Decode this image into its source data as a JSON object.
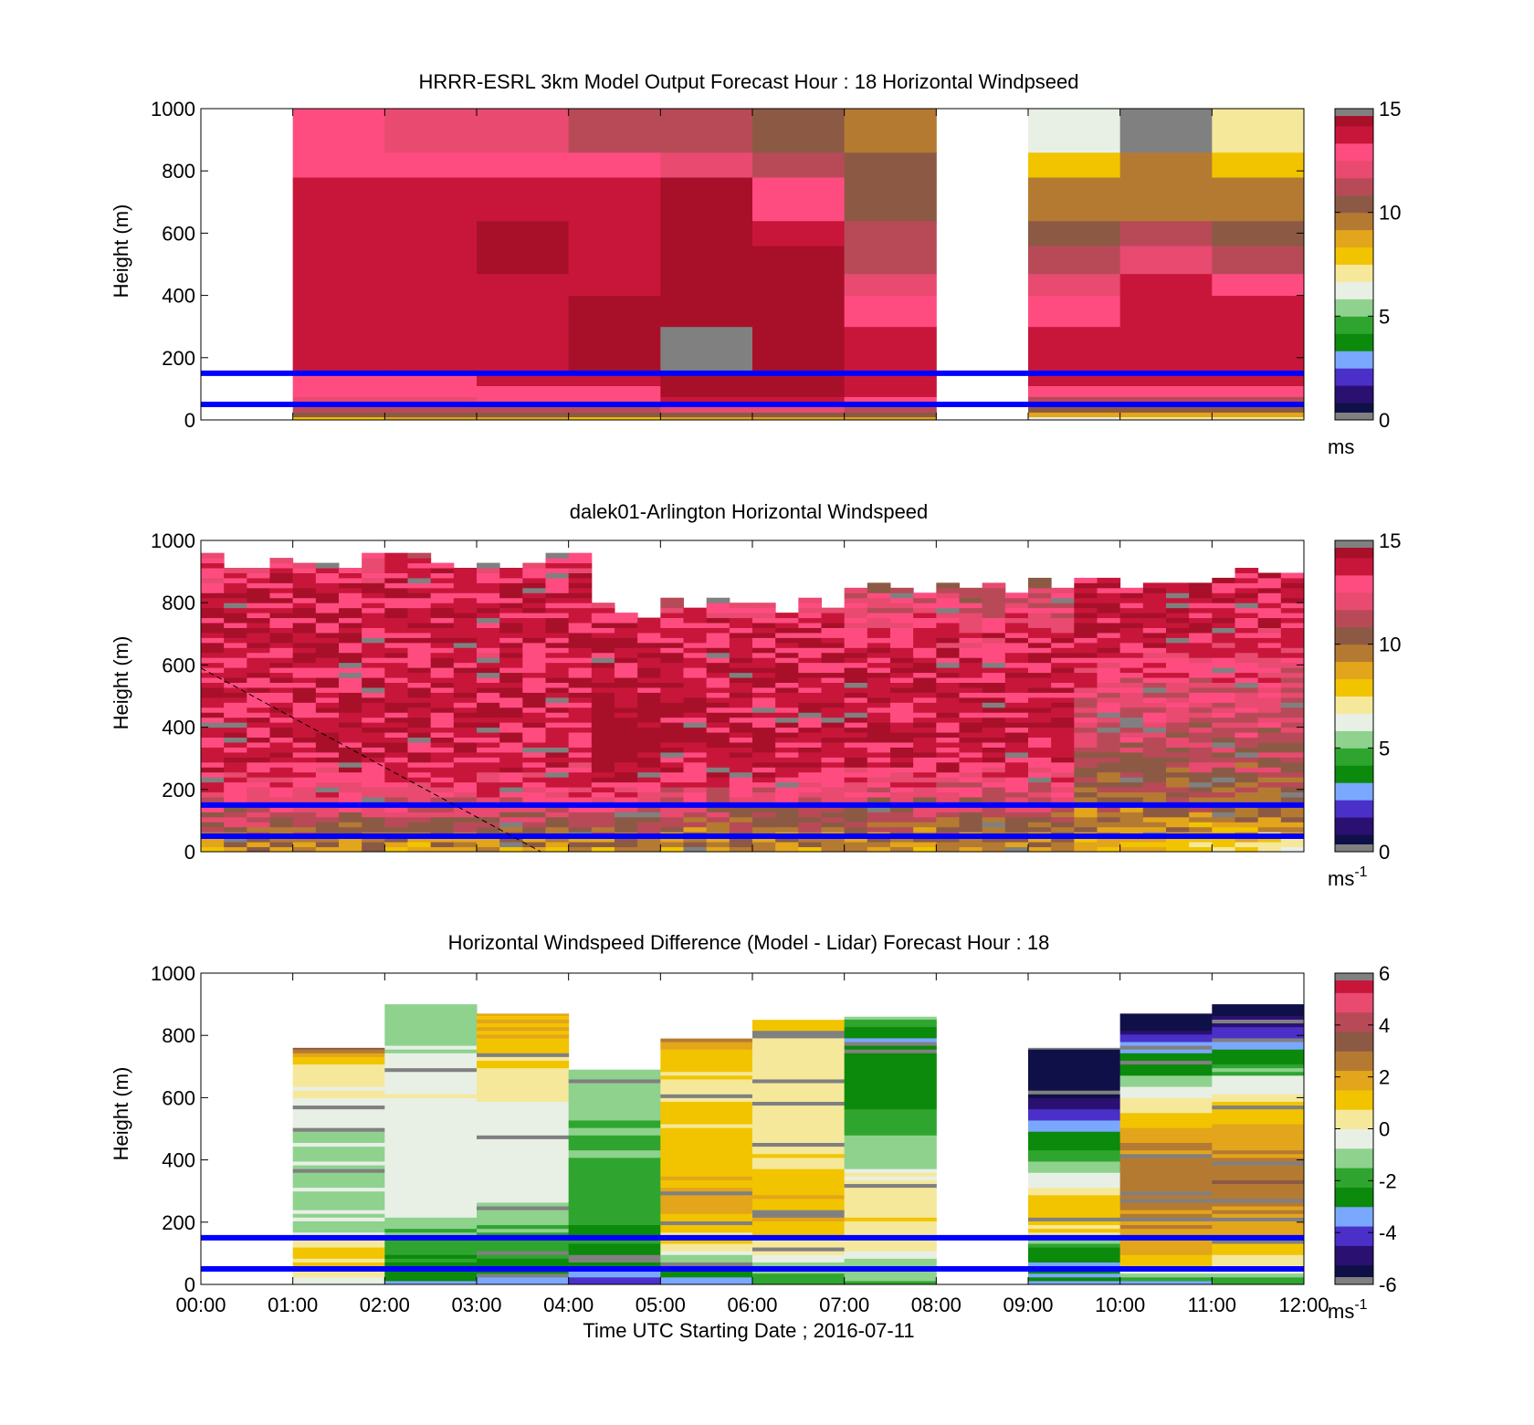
{
  "colors": {
    "speed_scale": [
      "#101048",
      "#2a1070",
      "#4a30c8",
      "#7aa8ff",
      "#0b8a0b",
      "#2fa52f",
      "#8ed28e",
      "#e8f0e6",
      "#f5e89a",
      "#f2c400",
      "#e3a51b",
      "#b57a32",
      "#8c5a44",
      "#b84a58",
      "#e84a70",
      "#ff4c80",
      "#c8163a",
      "#a8102a"
    ],
    "diff_scale": [
      "#101048",
      "#2a1070",
      "#4a30c8",
      "#7aa8ff",
      "#0b8a0b",
      "#2fa52f",
      "#8ed28e",
      "#e8f0e6",
      "#f5e89a",
      "#f2c400",
      "#e3a51b",
      "#b57a32",
      "#8c5a44",
      "#b84a58",
      "#e84a70",
      "#c8163a"
    ],
    "missing": "#808080",
    "reference_lines": "#0000ff"
  },
  "chart_data": [
    {
      "type": "heatmap",
      "title": "HRRR-ESRL 3km Model Output   Forecast Hour : 18 Horizontal Windpseed",
      "ylabel": "Height (m)",
      "xlabel": "",
      "x_tick_labels": [],
      "ylim": [
        0,
        1000
      ],
      "y_ticks": [
        0,
        200,
        400,
        600,
        800,
        1000
      ],
      "xlim_hours": [
        0,
        12
      ],
      "colorbar": {
        "range": [
          0,
          15
        ],
        "ticks": [
          0,
          5,
          10,
          15
        ],
        "unit": "ms",
        "unit_sup": ""
      },
      "reference_lines_m": [
        50,
        150
      ],
      "columns": [
        {
          "hour_start": 0,
          "values": null
        },
        {
          "hour_start": 1,
          "values": [
            8,
            10,
            11,
            12,
            12.5,
            13,
            13.5,
            13.5,
            13.5,
            13.8,
            13.8,
            13.8,
            13.5,
            13.2,
            13.0
          ]
        },
        {
          "hour_start": 2,
          "values": [
            8.5,
            10,
            11,
            12,
            12.5,
            13,
            13.5,
            13.5,
            13.8,
            13.8,
            13.8,
            13.6,
            13.4,
            12.8,
            12.0
          ]
        },
        {
          "hour_start": 3,
          "values": [
            9,
            10,
            11.5,
            12.5,
            13,
            13.8,
            14,
            14,
            14,
            14,
            14.2,
            14.2,
            13.8,
            13.2,
            12.0
          ]
        },
        {
          "hour_start": 4,
          "values": [
            8,
            10,
            11,
            12.5,
            13.2,
            14,
            14.2,
            14.4,
            14.2,
            14,
            14,
            13.8,
            13.5,
            12.5,
            11.0
          ]
        },
        {
          "hour_start": 5,
          "values": [
            9,
            10.5,
            12,
            13.5,
            14.5,
            15,
            null,
            null,
            15,
            15,
            15,
            14.2,
            14.2,
            12.2,
            11.0
          ]
        },
        {
          "hour_start": 6,
          "values": [
            9,
            10.5,
            12,
            13.5,
            14.5,
            15,
            15,
            15,
            15,
            15,
            14.2,
            13.5,
            13.2,
            11.0,
            10.5
          ]
        },
        {
          "hour_start": 7,
          "values": [
            8.5,
            10,
            11,
            12.5,
            13.5,
            13.8,
            13.8,
            13.8,
            13.2,
            12.2,
            11.5,
            11.0,
            10.5,
            10.0,
            9.5
          ]
        },
        {
          "hour_start": 8,
          "values": null
        },
        {
          "hour_start": 9,
          "values": [
            6,
            9,
            10,
            11,
            12.5,
            13.5,
            13.8,
            13.8,
            13.2,
            12.0,
            11.0,
            10.0,
            9.5,
            7.5,
            6.5
          ]
        },
        {
          "hour_start": 10,
          "values": [
            7,
            9,
            10,
            11,
            12.5,
            13.5,
            13.8,
            13.8,
            13.8,
            13.5,
            12.0,
            11.0,
            9.5,
            9.5,
            null
          ]
        },
        {
          "hour_start": 11,
          "values": [
            7,
            9,
            10,
            11,
            12.5,
            13.5,
            13.8,
            13.8,
            13.5,
            13.2,
            11.0,
            10.0,
            9.5,
            8.0,
            7.0
          ]
        }
      ]
    },
    {
      "type": "heatmap",
      "title": "dalek01-Arlington  Horizontal Windspeed",
      "ylabel": "Height (m)",
      "xlabel": "",
      "x_tick_labels": [],
      "ylim": [
        0,
        1000
      ],
      "y_ticks": [
        0,
        200,
        400,
        600,
        800,
        1000
      ],
      "xlim_hours": [
        0,
        12
      ],
      "colorbar": {
        "range": [
          0,
          15
        ],
        "ticks": [
          0,
          5,
          10,
          15
        ],
        "unit": "ms",
        "unit_sup": "-1"
      },
      "reference_lines_m": [
        50,
        150
      ],
      "dashed_line": {
        "from": [
          0,
          590
        ],
        "to": [
          3.7,
          0
        ]
      },
      "profile_bands": [
        {
          "from_hour": 0,
          "to_hour": 4.2,
          "max_height_m": 960,
          "values_bottom_to_top": [
            9,
            11,
            12.5,
            13.5,
            13.8,
            13.8,
            13.8,
            13.5,
            13.8,
            13.8,
            13.5,
            12.5
          ]
        },
        {
          "from_hour": 4.2,
          "to_hour": 5.0,
          "max_height_m": 800,
          "values_bottom_to_top": [
            9,
            11,
            12.5,
            14.5,
            15,
            15,
            14.5,
            14,
            13.8,
            13.5,
            13
          ]
        },
        {
          "from_hour": 5.0,
          "to_hour": 7.0,
          "max_height_m": 820,
          "values_bottom_to_top": [
            9,
            10.5,
            12,
            13.5,
            14,
            14,
            14,
            14,
            13.8,
            13.5,
            11
          ]
        },
        {
          "from_hour": 7.0,
          "to_hour": 9.5,
          "max_height_m": 880,
          "values_bottom_to_top": [
            9,
            10.5,
            12,
            13.5,
            13.8,
            13.8,
            13.8,
            13.8,
            13,
            12,
            11
          ]
        },
        {
          "from_hour": 9.5,
          "to_hour": 11.0,
          "max_height_m": 900,
          "values_bottom_to_top": [
            8,
            9.5,
            10.5,
            11,
            11.5,
            12,
            12.5,
            13.2,
            13.8,
            13.8,
            13.5
          ]
        },
        {
          "from_hour": 11.0,
          "to_hour": 11.95,
          "max_height_m": 920,
          "values_bottom_to_top": [
            7,
            9.5,
            10.5,
            11,
            11.5,
            12,
            12.5,
            13,
            13.5,
            13.8,
            14
          ]
        }
      ]
    },
    {
      "type": "heatmap",
      "title": "Horizontal Windspeed Difference (Model - Lidar) Forecast Hour : 18",
      "ylabel": "Height (m)",
      "xlabel": "Time UTC  Starting Date ; 2016-07-11",
      "x_tick_labels": [
        "00:00",
        "01:00",
        "02:00",
        "03:00",
        "04:00",
        "05:00",
        "06:00",
        "07:00",
        "08:00",
        "09:00",
        "10:00",
        "11:00",
        "12:00"
      ],
      "ylim": [
        0,
        1000
      ],
      "y_ticks": [
        0,
        200,
        400,
        600,
        800,
        1000
      ],
      "xlim_hours": [
        0,
        12
      ],
      "colorbar": {
        "range": [
          -6,
          6
        ],
        "ticks": [
          -6,
          -4,
          -2,
          0,
          2,
          4,
          6
        ],
        "unit": "ms",
        "unit_sup": "-1"
      },
      "reference_lines_m": [
        50,
        150
      ],
      "columns": [
        {
          "hour_start": 0,
          "top_m": 0,
          "values_bottom_to_top": []
        },
        {
          "hour_start": 1,
          "top_m": 760,
          "values_bottom_to_top": [
            -0.5,
            0.5,
            1,
            -1,
            -1,
            -1,
            -1,
            -1,
            -0.8,
            -0.8,
            -0.5,
            0,
            0.2,
            0.5,
            3.5
          ]
        },
        {
          "hour_start": 2,
          "top_m": 900,
          "values_bottom_to_top": [
            -3,
            -2.5,
            -1.8,
            -1.0,
            -0.4,
            -0.3,
            -0.3,
            -0.3,
            -0.3,
            -0.2,
            -0.2,
            -0.5,
            -0.8,
            -1.0,
            -1.2
          ]
        },
        {
          "hour_start": 3,
          "top_m": 870,
          "values_bottom_to_top": [
            -3,
            -2.5,
            -1.8,
            -1.5,
            -0.8,
            -0.4,
            -0.4,
            -0.4,
            -0.3,
            -0.2,
            0.3,
            0.5,
            1.2,
            1.5,
            1.5
          ]
        },
        {
          "hour_start": 4,
          "top_m": 690,
          "values_bottom_to_top": [
            -4,
            -3,
            -2.5,
            -2.3,
            -2.0,
            -1.8,
            -1.8,
            -1.7,
            -1.6,
            -1.5,
            -1.4,
            -1.3,
            -1.2,
            -1.0,
            -1.0
          ]
        },
        {
          "hour_start": 5,
          "top_m": 790,
          "values_bottom_to_top": [
            -3,
            -2,
            0.5,
            1,
            1.5,
            1.5,
            1.3,
            1.2,
            1.0,
            0.8,
            0.7,
            0.6,
            0.8,
            1.0,
            3.0
          ]
        },
        {
          "hour_start": 6,
          "top_m": 850,
          "values_bottom_to_top": [
            -2,
            -1,
            0.5,
            1.5,
            1.5,
            1.2,
            1.0,
            0.8,
            0.6,
            0.3,
            0.2,
            0.1,
            0.3,
            0.5,
            1.5
          ]
        },
        {
          "hour_start": 7,
          "top_m": 860,
          "values_bottom_to_top": [
            -1.5,
            -1,
            0.3,
            0.5,
            0.5,
            0.4,
            -0.5,
            -1.2,
            -1.8,
            -2.2,
            -2.5,
            -2.8,
            -3.0,
            -3.0,
            -1.0
          ]
        },
        {
          "hour_start": 8,
          "top_m": 0,
          "values_bottom_to_top": []
        },
        {
          "hour_start": 9,
          "top_m": 760,
          "values_bottom_to_top": [
            -3,
            -3,
            -2.5,
            0.8,
            1.2,
            1.0,
            -0.3,
            -1.0,
            -2.5,
            -3.0,
            -4.0,
            -5.5,
            -6.5,
            -6.5,
            -6.5
          ]
        },
        {
          "hour_start": 10,
          "top_m": 870,
          "values_bottom_to_top": [
            -3,
            1,
            2,
            2.2,
            2.4,
            2.6,
            2.5,
            2.2,
            1.5,
            0.5,
            -0.5,
            -2.5,
            -3.0,
            -5.0,
            -6.5
          ]
        },
        {
          "hour_start": 11,
          "top_m": 900,
          "values_bottom_to_top": [
            -2,
            0.5,
            1.2,
            2,
            2.5,
            2.8,
            2.5,
            2.0,
            1.5,
            0.5,
            -0.5,
            -2.5,
            -3.5,
            -5.0,
            -6.5
          ]
        }
      ]
    }
  ]
}
